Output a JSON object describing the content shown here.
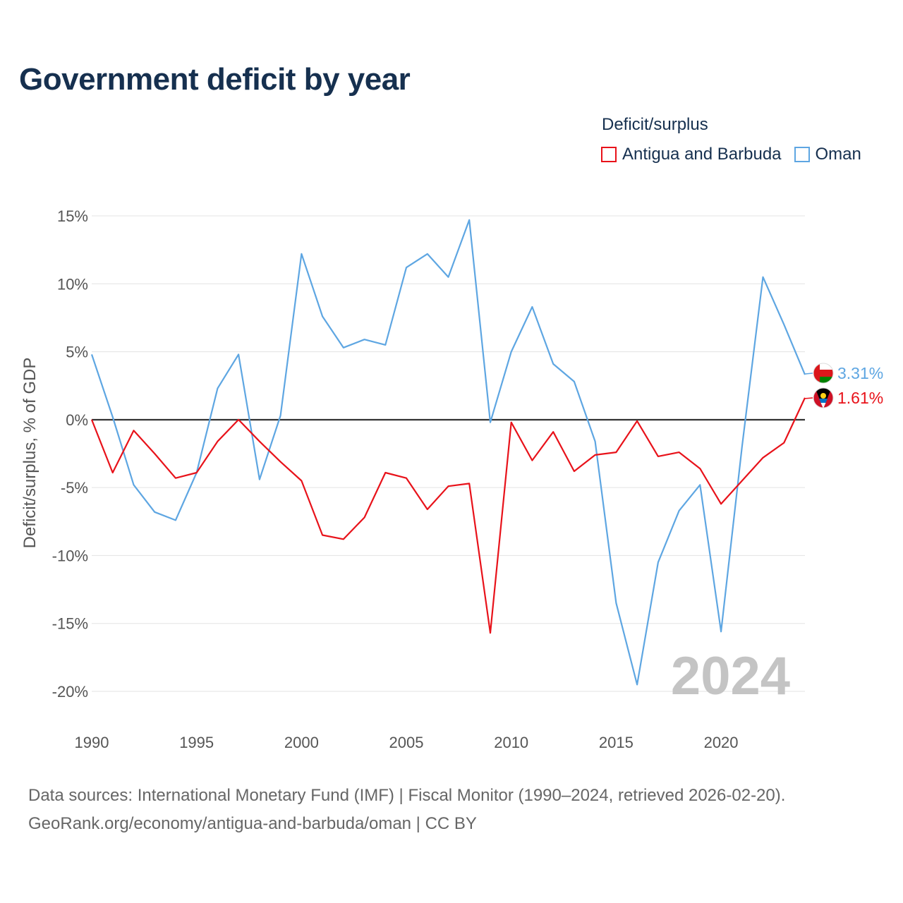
{
  "title": "Government deficit by year",
  "legend": {
    "title": "Deficit/surplus",
    "items": [
      {
        "name": "Antigua and Barbuda",
        "color": "#e8121a"
      },
      {
        "name": "Oman",
        "color": "#5ea6e2"
      }
    ]
  },
  "watermark_year": "2024",
  "source_line1": "Data sources: International Monetary Fund (IMF) | Fiscal Monitor (1990–2024, retrieved 2026-02-20).",
  "source_line2": "GeoRank.org/economy/antigua-and-barbuda/oman | CC BY",
  "chart_data": {
    "type": "line",
    "title": "Government deficit by year",
    "xlabel": "",
    "ylabel": "Deficit/surplus, % of GDP",
    "xlim": [
      1990,
      2024
    ],
    "ylim": [
      -20,
      15
    ],
    "x_ticks": [
      1990,
      1995,
      2000,
      2005,
      2010,
      2015,
      2020
    ],
    "y_ticks": [
      15,
      10,
      5,
      0,
      -5,
      -10,
      -15,
      -20
    ],
    "y_tick_labels": [
      "15%",
      "10%",
      "5%",
      "0%",
      "-5%",
      "-10%",
      "-15%",
      "-20%"
    ],
    "x": [
      1990,
      1991,
      1992,
      1993,
      1994,
      1995,
      1996,
      1997,
      1998,
      1999,
      2000,
      2001,
      2002,
      2003,
      2004,
      2005,
      2006,
      2007,
      2008,
      2009,
      2010,
      2011,
      2012,
      2013,
      2014,
      2015,
      2016,
      2017,
      2018,
      2019,
      2020,
      2021,
      2022,
      2023,
      2024
    ],
    "series": [
      {
        "name": "Antigua and Barbuda",
        "color": "#e8121a",
        "values": [
          0.0,
          -3.9,
          -0.8,
          -2.5,
          -4.3,
          -3.9,
          -1.6,
          0.0,
          -1.6,
          -3.1,
          -4.5,
          -8.5,
          -8.8,
          -7.2,
          -3.9,
          -4.3,
          -6.6,
          -4.9,
          -4.7,
          -15.7,
          -0.2,
          -3.0,
          -0.9,
          -3.8,
          -2.6,
          -2.4,
          -0.1,
          -2.7,
          -2.4,
          -3.6,
          -6.2,
          -4.5,
          -2.8,
          -1.7,
          1.61
        ],
        "end_label": "1.61%"
      },
      {
        "name": "Oman",
        "color": "#5ea6e2",
        "values": [
          4.8,
          0.2,
          -4.8,
          -6.8,
          -7.4,
          -3.9,
          2.3,
          4.8,
          -4.4,
          0.3,
          12.2,
          7.6,
          5.3,
          5.9,
          5.5,
          11.2,
          12.2,
          10.5,
          14.7,
          -0.2,
          5.0,
          8.3,
          4.1,
          2.8,
          -1.6,
          -13.5,
          -19.5,
          -10.5,
          -6.7,
          -4.8,
          -15.6,
          -2.0,
          10.5,
          7.0,
          3.31
        ],
        "end_label": "3.31%"
      }
    ]
  }
}
